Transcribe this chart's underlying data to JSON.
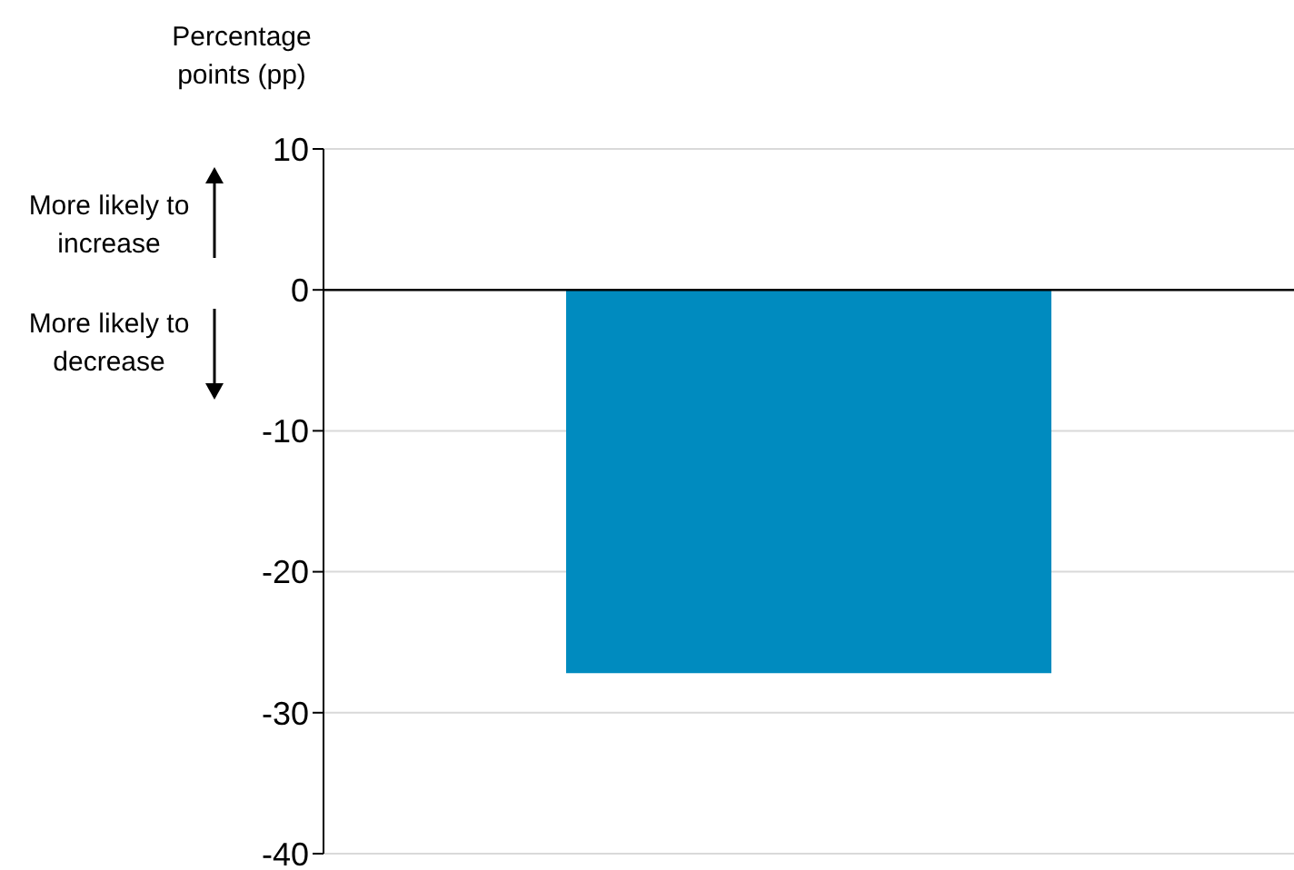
{
  "chart_data": {
    "type": "bar",
    "ylabel": "Percentage points (pp)",
    "categories": [
      null
    ],
    "values": [
      -27.2
    ],
    "color": "#008bbf",
    "ylim": [
      -40,
      10
    ],
    "yticks": [
      -40,
      -30,
      -20,
      -10,
      0,
      10
    ],
    "grid": "y",
    "ref_lines": [
      {
        "axis": "y",
        "value": 0,
        "color": "#000000"
      }
    ],
    "annotations": [
      "More likely to increase",
      "More likely to decrease"
    ]
  }
}
